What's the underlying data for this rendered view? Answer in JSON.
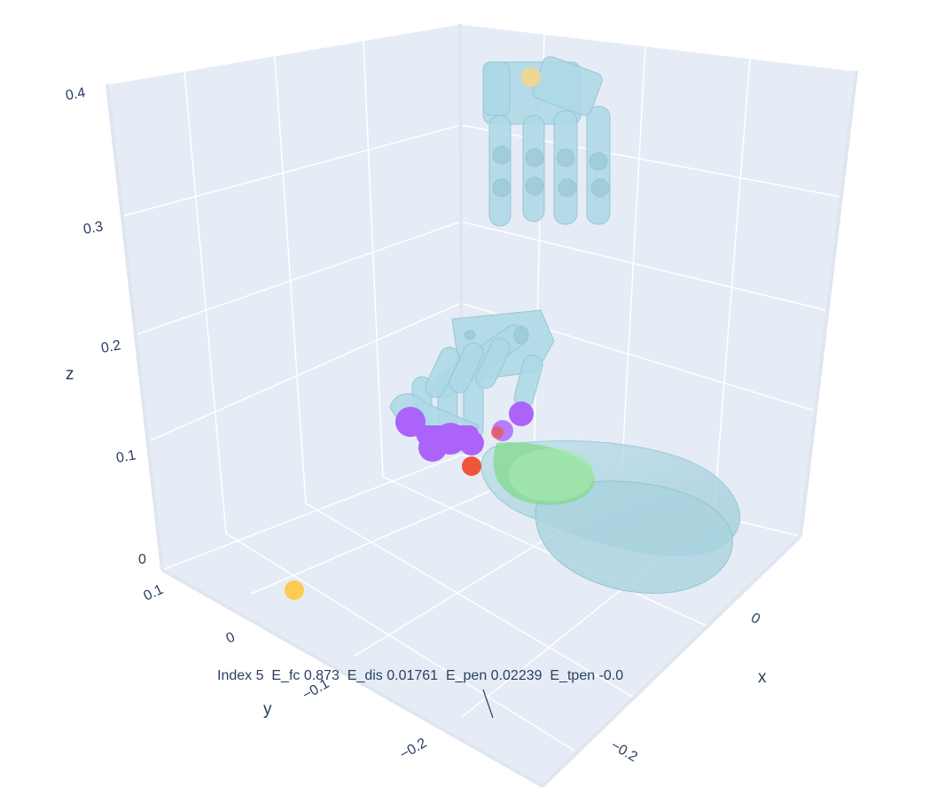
{
  "chart_data": {
    "type": "scatter3d",
    "annotation": "Index 5  E_fc 0.873  E_dis 0.01761  E_pen 0.02239  E_tpen -0.0",
    "axes": {
      "x": {
        "title": "x",
        "ticks": [
          "0",
          "−0.2"
        ]
      },
      "y": {
        "title": "y",
        "ticks": [
          "0.1",
          "0",
          "−0.1",
          "−0.2"
        ]
      },
      "z": {
        "title": "z",
        "ticks": [
          "0",
          "0.1",
          "0.2",
          "0.3",
          "0.4"
        ]
      }
    },
    "grid": true,
    "background": "#e5ecf6",
    "gridcolor": "#ffffff",
    "meshes": [
      {
        "name": "hand-upper",
        "color": "#add8e6"
      },
      {
        "name": "hand-lower",
        "color": "#add8e6"
      },
      {
        "name": "object",
        "color": "#add8e6"
      },
      {
        "name": "contact-region",
        "color": "#7ed987"
      }
    ],
    "markers": [
      {
        "name": "target-point-top",
        "color": "#f4d58d"
      },
      {
        "name": "target-point-floor",
        "color": "#fecb52"
      },
      {
        "name": "contact-points",
        "color": "#ab63fa"
      },
      {
        "name": "contact-point-red",
        "color": "#ef553b"
      }
    ]
  }
}
